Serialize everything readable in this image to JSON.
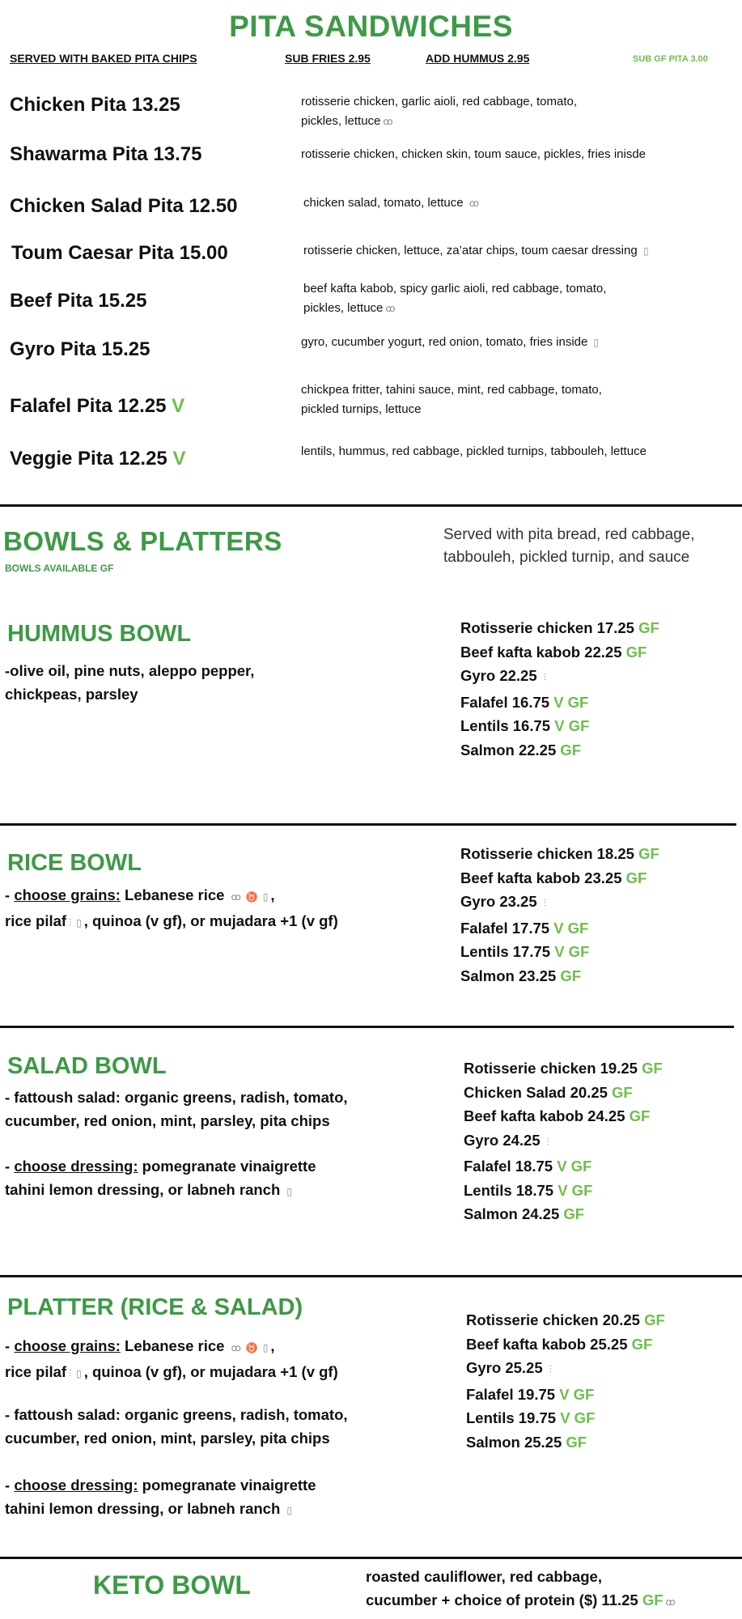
{
  "colors": {
    "title_green": "#3d9a45",
    "gf_green": "#6cbf4a"
  },
  "pita": {
    "title": "PITA SANDWICHES",
    "sub_chips": "SERVED WITH BAKED PITA CHIPS",
    "sub_fries": "SUB FRIES 2.95",
    "sub_hummus": "ADD HUMMUS 2.95",
    "sub_gf": "SUB GF PITA 3.00",
    "items": [
      {
        "name": "Chicken Pita 13.25",
        "tag": "",
        "desc": [
          [
            {
              "t": "rotisserie chicken, garlic aioli, red cabbage, tomato,"
            }
          ],
          [
            {
              "t": "pickles, lettuce"
            },
            {
              "icon": "nut"
            }
          ]
        ]
      },
      {
        "name": "Shawarma Pita 13.75",
        "tag": "",
        "desc": [
          [
            {
              "t": "rotisserie chicken, chicken skin, toum sauce, pickles, fries inisde"
            }
          ]
        ]
      },
      {
        "name": "Chicken Salad Pita 12.50",
        "tag": "",
        "desc": [
          [
            {
              "t": "chicken salad,  tomato, lettuce "
            },
            {
              "icon": "nut"
            }
          ]
        ]
      },
      {
        "name": "Toum Caesar Pita 15.00",
        "tag": "",
        "desc": [
          [
            {
              "t": "rotisserie chicken, lettuce, za’atar chips, toum caesar dressing "
            },
            {
              "icon": "dairy"
            }
          ]
        ]
      },
      {
        "name": "Beef Pita 15.25",
        "tag": "",
        "desc": [
          [
            {
              "t": "beef kafta kabob, spicy garlic aioli, red cabbage, tomato,"
            }
          ],
          [
            {
              "t": "pickles, lettuce"
            },
            {
              "icon": "nut"
            }
          ]
        ]
      },
      {
        "name": "Gyro Pita 15.25",
        "tag": "",
        "desc": [
          [
            {
              "t": "gyro, cucumber yogurt, red onion, tomato, fries inside "
            },
            {
              "icon": "dairy"
            }
          ]
        ]
      },
      {
        "name": "Falafel Pita 12.25",
        "tag": "V",
        "desc": [
          [
            {
              "t": "chickpea fritter, tahini sauce, mint, red cabbage, tomato,"
            }
          ],
          [
            {
              "t": "pickled turnips, lettuce"
            }
          ]
        ]
      },
      {
        "name": "Veggie Pita 12.25",
        "tag": "V",
        "desc": [
          [
            {
              "t": "lentils, hummus, red cabbage, pickled turnips, tabbouleh, lettuce"
            }
          ]
        ]
      }
    ]
  },
  "bowls": {
    "title": "BOWLS & PLATTERS",
    "available": "BOWLS AVAILABLE GF",
    "served": [
      "Served with pita bread, red cabbage,",
      "tabbouleh, pickled turnip, and sauce"
    ],
    "sections": [
      {
        "title": "HUMMUS BOWL",
        "blocks": [
          [
            [
              {
                "t": "-olive oil, pine nuts, aleppo pepper,"
              }
            ],
            [
              {
                "t": "chickpeas, parsley"
              }
            ]
          ]
        ],
        "proteins": [
          [
            {
              "t": "Rotisserie chicken 17.25  "
            },
            {
              "g": "GF"
            }
          ],
          [
            {
              "t": "Beef kafta kabob 22.25 "
            },
            {
              "g": "GF"
            }
          ],
          [
            {
              "t": "Gyro 22.25 "
            },
            {
              "icon": "wheat"
            }
          ],
          [
            {
              "t": "Falafel 16.75 "
            },
            {
              "g": "V GF"
            }
          ],
          [
            {
              "t": "Lentils 16.75 "
            },
            {
              "g": "V GF"
            }
          ],
          [
            {
              "t": "Salmon 22.25 "
            },
            {
              "g": "GF"
            }
          ]
        ]
      },
      {
        "title": "RICE BOWL",
        "blocks": [
          [
            [
              {
                "t": "- "
              },
              {
                "u": "choose grains:"
              },
              {
                "t": " Lebanese rice "
              },
              {
                "icon": "nut"
              },
              {
                "icon": "beef"
              },
              {
                "icon": "dairy"
              },
              {
                "t": ","
              }
            ],
            [
              {
                "t": " rice pilaf"
              },
              {
                "icon": "wheat"
              },
              {
                "icon": "dairy"
              },
              {
                "t": ", quinoa (v gf), or mujadara +1 (v gf)"
              }
            ]
          ]
        ],
        "proteins": [
          [
            {
              "t": "Rotisserie chicken 18.25  "
            },
            {
              "g": "GF"
            }
          ],
          [
            {
              "t": "Beef kafta kabob 23.25 "
            },
            {
              "g": "GF"
            }
          ],
          [
            {
              "t": "Gyro 23.25 "
            },
            {
              "icon": "wheat"
            }
          ],
          [
            {
              "t": "Falafel 17.75 "
            },
            {
              "g": "V GF"
            }
          ],
          [
            {
              "t": "Lentils 17.75 "
            },
            {
              "g": "V GF"
            }
          ],
          [
            {
              "t": "Salmon 23.25 "
            },
            {
              "g": "GF"
            }
          ]
        ]
      },
      {
        "title": "SALAD BOWL",
        "blocks": [
          [
            [
              {
                "t": "- fattoush salad:"
              },
              {
                "n": " organic greens, radish, tomato,"
              }
            ],
            [
              {
                "n": "cucumber, red onion, mint, parsley, pita chips"
              }
            ]
          ],
          [
            [
              {
                "t": "- "
              },
              {
                "u": "choose dressing:"
              },
              {
                "n": " pomegranate vinaigrette"
              }
            ],
            [
              {
                "n": "tahini lemon dressing, or labneh ranch "
              },
              {
                "icon": "dairy"
              }
            ]
          ]
        ],
        "proteins": [
          [
            {
              "t": "Rotisserie chicken 19.25 "
            },
            {
              "g": "GF"
            }
          ],
          [
            {
              "t": "Chicken Salad 20.25 "
            },
            {
              "g": "GF"
            }
          ],
          [
            {
              "t": "Beef kafta kabob 24.25 "
            },
            {
              "g": "GF"
            }
          ],
          [
            {
              "t": "Gyro 24.25 "
            },
            {
              "icon": "wheat"
            }
          ],
          [
            {
              "t": "Falafel 18.75 "
            },
            {
              "g": "V GF"
            }
          ],
          [
            {
              "t": "Lentils 18.75 "
            },
            {
              "g": "V GF"
            }
          ],
          [
            {
              "t": "Salmon 24.25 "
            },
            {
              "g": "GF"
            }
          ]
        ]
      },
      {
        "title": "PLATTER (RICE & SALAD)",
        "blocks": [
          [
            [
              {
                "t": "- "
              },
              {
                "u": "choose grains:"
              },
              {
                "n": " Lebanese rice "
              },
              {
                "icon": "nut"
              },
              {
                "icon": "beef"
              },
              {
                "icon": "dairy"
              },
              {
                "t": ","
              }
            ],
            [
              {
                "n": " rice pilaf"
              },
              {
                "icon": "wheat"
              },
              {
                "icon": "dairy"
              },
              {
                "n": ", quinoa (v gf), or mujadara +1 (v gf)"
              }
            ]
          ],
          [
            [
              {
                "t": "- fattoush salad:"
              },
              {
                "n": " organic greens, radish, tomato,"
              }
            ],
            [
              {
                "n": "cucumber, red onion, mint, parsley, pita chips"
              }
            ]
          ],
          [
            [
              {
                "t": "- "
              },
              {
                "u": "choose dressing:"
              },
              {
                "n": " pomegranate vinaigrette"
              }
            ],
            [
              {
                "n": "tahini lemon dressing, or labneh ranch "
              },
              {
                "icon": "dairy"
              }
            ]
          ]
        ],
        "proteins": [
          [
            {
              "t": "Rotisserie chicken 20.25  "
            },
            {
              "g": "GF"
            }
          ],
          [
            {
              "t": "Beef kafta kabob 25.25 "
            },
            {
              "g": "GF"
            }
          ],
          [
            {
              "t": "Gyro 25.25 "
            },
            {
              "icon": "wheat"
            }
          ],
          [
            {
              "t": "Falafel 19.75 "
            },
            {
              "g": "V GF"
            }
          ],
          [
            {
              "t": "Lentils 19.75 "
            },
            {
              "g": "V GF"
            }
          ],
          [
            {
              "t": "Salmon 25.25 "
            },
            {
              "g": "GF"
            }
          ]
        ]
      }
    ]
  },
  "keto": {
    "title": "KETO BOWL",
    "desc": [
      [
        {
          "t": "roasted cauliflower, red cabbage,"
        }
      ],
      [
        {
          "t": "cucumber + choice of protein ($) 11.25 "
        },
        {
          "g": "GF"
        },
        {
          "icon": "nut"
        }
      ]
    ]
  }
}
